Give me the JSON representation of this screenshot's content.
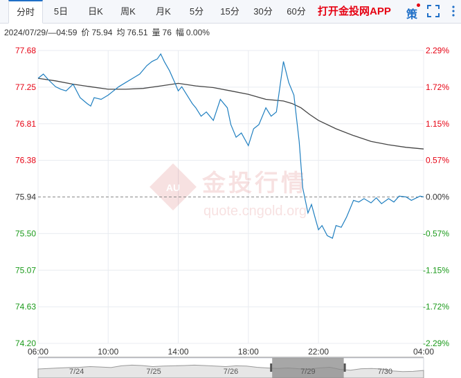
{
  "tabs": [
    {
      "label": "分时",
      "active": true
    },
    {
      "label": "5日",
      "active": false
    },
    {
      "label": "日K",
      "active": false
    },
    {
      "label": "周K",
      "active": false
    },
    {
      "label": "月K",
      "active": false
    },
    {
      "label": "5分",
      "active": false
    },
    {
      "label": "15分",
      "active": false
    },
    {
      "label": "30分",
      "active": false
    },
    {
      "label": "60分",
      "active": false
    }
  ],
  "app_link": "打开金投网APP",
  "policy_label": "策",
  "icons": {
    "fullscreen": "fullscreen-icon",
    "more": "more-vertical-icon"
  },
  "info": {
    "datetime": "2024/07/29/—04:59",
    "price_label": "价",
    "price": "75.94",
    "avg_label": "均",
    "avg": "76.51",
    "vol_label": "量",
    "vol": "76",
    "chg_label": "幅",
    "chg": "0.00%"
  },
  "watermark": {
    "brand": "金投行情",
    "url": "quote.cngold.org",
    "badge": "AU"
  },
  "colors": {
    "price_line": "#1f7fc0",
    "avg_line": "#444444",
    "up": "#e60012",
    "down": "#1a9a1a",
    "neutral": "#333333",
    "grid": "#e8ebf0",
    "navigator_window": "#8a8a8a"
  },
  "chart_data": {
    "type": "line",
    "reference_price": 75.94,
    "ylim": [
      74.2,
      77.68
    ],
    "y_ticks": [
      "77.68",
      "77.25",
      "76.81",
      "76.38",
      "75.94",
      "75.50",
      "75.07",
      "74.63",
      "74.20"
    ],
    "pct_ticks": [
      "2.29%",
      "1.72%",
      "1.15%",
      "0.57%",
      "0.00%",
      "-0.57%",
      "-1.15%",
      "-1.72%",
      "-2.29%"
    ],
    "x_ticks": [
      "06:00",
      "10:00",
      "14:00",
      "18:00",
      "22:00",
      "04:00"
    ],
    "x_tick_hours": [
      0,
      4,
      8,
      12,
      16,
      22
    ],
    "x_range_hours": [
      0,
      22
    ],
    "series": [
      {
        "key": "price",
        "x": [
          0,
          0.3,
          0.6,
          1.0,
          1.3,
          1.6,
          2.0,
          2.4,
          2.8,
          3.0,
          3.2,
          3.6,
          4.0,
          4.3,
          4.6,
          5.0,
          5.4,
          5.8,
          6.0,
          6.2,
          6.5,
          6.8,
          7.0,
          7.2,
          7.5,
          7.8,
          8.0,
          8.2,
          8.5,
          8.8,
          9.0,
          9.3,
          9.6,
          10.0,
          10.4,
          10.8,
          11.0,
          11.3,
          11.6,
          12.0,
          12.3,
          12.6,
          13.0,
          13.3,
          13.6,
          14.0,
          14.3,
          14.6,
          14.9,
          15.1,
          15.4,
          15.6,
          15.8,
          16.0,
          16.2,
          16.5,
          16.8,
          17.0,
          17.3,
          17.6,
          17.8,
          18.0,
          18.3,
          18.6,
          19.0,
          19.3,
          19.6,
          20.0,
          20.3,
          20.6,
          21.0,
          21.3,
          21.6,
          21.8,
          22.0
        ],
        "y": [
          77.35,
          77.4,
          77.33,
          77.25,
          77.22,
          77.2,
          77.28,
          77.12,
          77.05,
          77.02,
          77.12,
          77.1,
          77.15,
          77.2,
          77.25,
          77.3,
          77.35,
          77.4,
          77.45,
          77.5,
          77.55,
          77.58,
          77.64,
          77.55,
          77.44,
          77.3,
          77.2,
          77.25,
          77.15,
          77.05,
          77.0,
          76.9,
          76.95,
          76.85,
          77.1,
          77.0,
          76.8,
          76.65,
          76.7,
          76.55,
          76.75,
          76.8,
          77.0,
          76.9,
          76.95,
          77.55,
          77.3,
          77.15,
          76.6,
          76.05,
          75.75,
          75.85,
          75.7,
          75.55,
          75.6,
          75.48,
          75.45,
          75.6,
          75.58,
          75.7,
          75.8,
          75.9,
          75.88,
          75.92,
          75.87,
          75.93,
          75.86,
          75.92,
          75.88,
          75.95,
          75.94,
          75.9,
          75.93,
          75.95,
          75.94
        ]
      },
      {
        "key": "average",
        "x": [
          0,
          1,
          2,
          3,
          4,
          5,
          6,
          7,
          8,
          9,
          10,
          11,
          12,
          13,
          14,
          14.5,
          15,
          15.5,
          16,
          17,
          18,
          19,
          20,
          21,
          22
        ],
        "y": [
          77.35,
          77.32,
          77.28,
          77.25,
          77.22,
          77.22,
          77.23,
          77.26,
          77.29,
          77.26,
          77.24,
          77.2,
          77.16,
          77.1,
          77.08,
          77.05,
          77.0,
          76.92,
          76.85,
          76.75,
          76.67,
          76.6,
          76.56,
          76.53,
          76.51
        ]
      }
    ],
    "navigator": {
      "date_labels": [
        "7/24",
        "7/25",
        "7/26",
        "7/29",
        "7/30"
      ],
      "selected_label": "7/29",
      "y": [
        0.62,
        0.58,
        0.55,
        0.52,
        0.5,
        0.45,
        0.48,
        0.52,
        0.4,
        0.35,
        0.38,
        0.45,
        0.42,
        0.4,
        0.38,
        0.35,
        0.38,
        0.42,
        0.45,
        0.4,
        0.42,
        0.5,
        0.55,
        0.58,
        0.55,
        0.6,
        0.62,
        0.55,
        0.5,
        0.65,
        0.7,
        0.6,
        0.58,
        0.62,
        0.75,
        0.8,
        0.78,
        0.72
      ]
    }
  }
}
